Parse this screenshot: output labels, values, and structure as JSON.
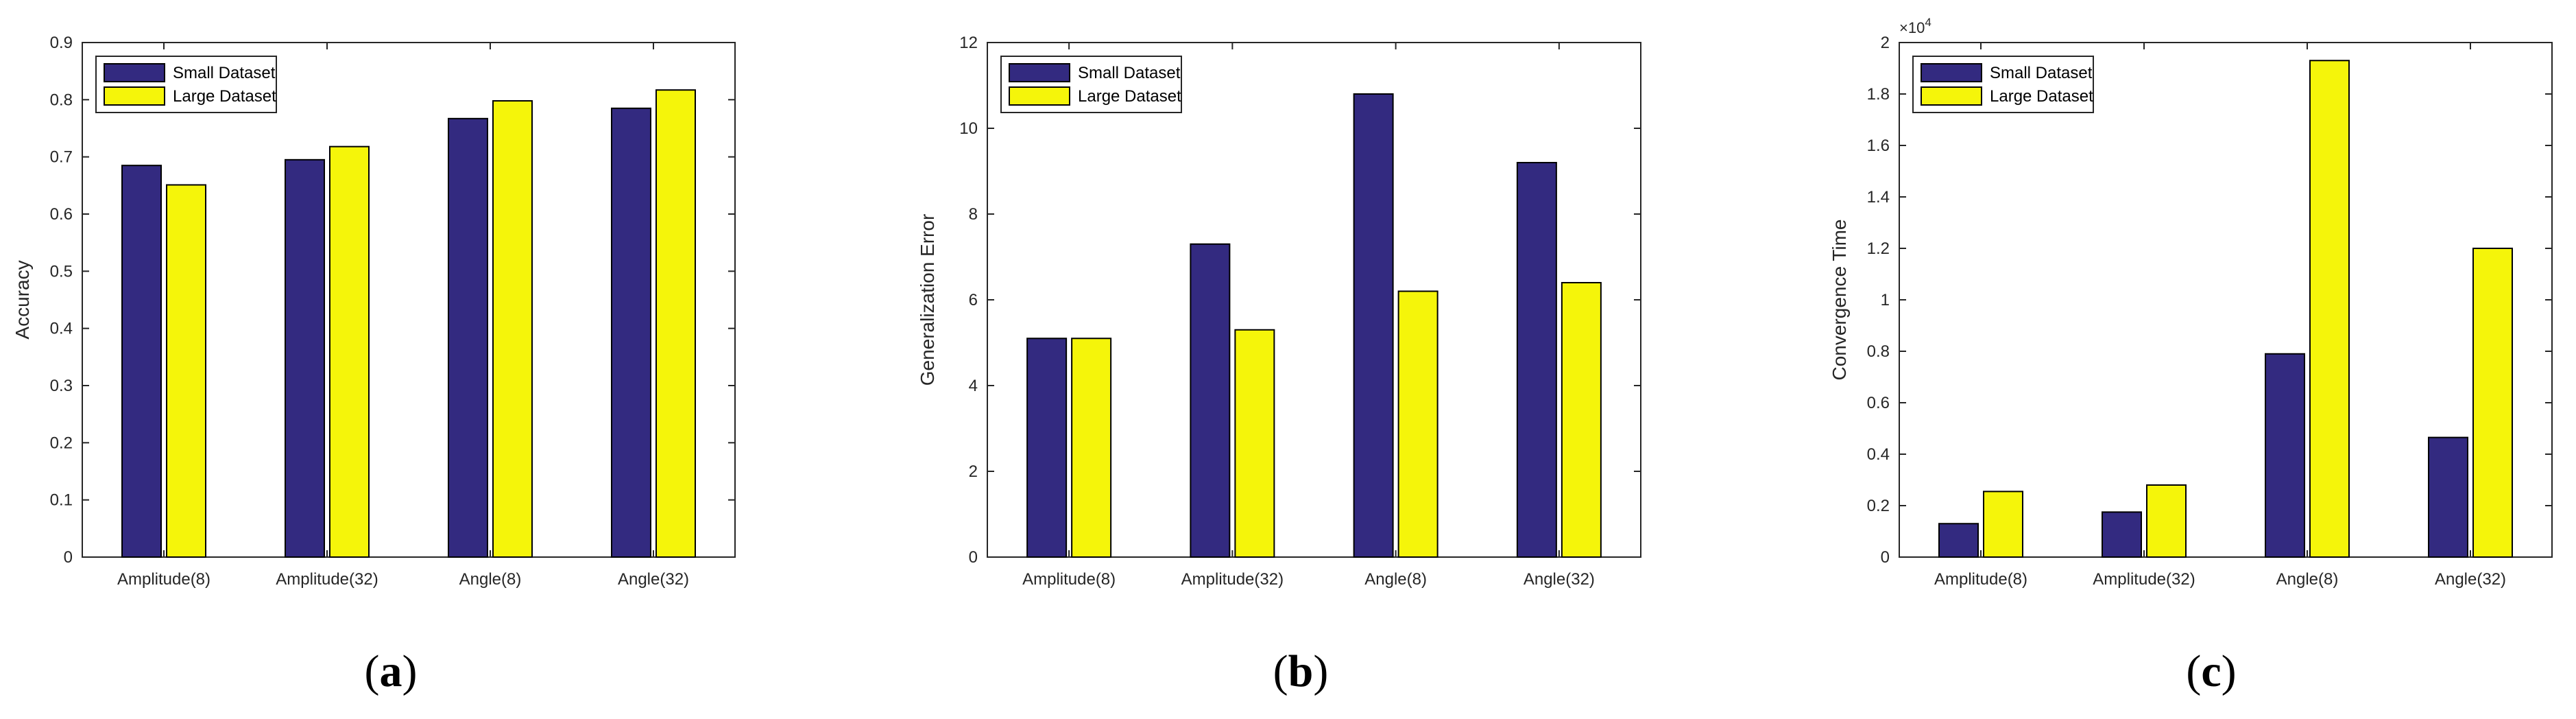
{
  "chart_data": [
    {
      "type": "bar",
      "caption_letter": "a",
      "categories": [
        "Amplitude(8)",
        "Amplitude(32)",
        "Angle(8)",
        "Angle(32)"
      ],
      "series": [
        {
          "name": "Small Dataset",
          "values": [
            0.685,
            0.695,
            0.767,
            0.785
          ]
        },
        {
          "name": "Large Dataset",
          "values": [
            0.651,
            0.718,
            0.798,
            0.817
          ]
        }
      ],
      "ylabel": "Accuracy",
      "xlabel": "",
      "ylim": [
        0,
        0.9
      ],
      "yticks": [
        0,
        0.1,
        0.2,
        0.3,
        0.4,
        0.5,
        0.6,
        0.7,
        0.8,
        0.9
      ],
      "ytick_labels": [
        "0",
        "0.1",
        "0.2",
        "0.3",
        "0.4",
        "0.5",
        "0.6",
        "0.7",
        "0.8",
        "0.9"
      ],
      "exponent_label": "",
      "legend_position": "top-left",
      "grid": false
    },
    {
      "type": "bar",
      "caption_letter": "b",
      "categories": [
        "Amplitude(8)",
        "Amplitude(32)",
        "Angle(8)",
        "Angle(32)"
      ],
      "series": [
        {
          "name": "Small Dataset",
          "values": [
            5.1,
            7.3,
            10.8,
            9.2
          ]
        },
        {
          "name": "Large Dataset",
          "values": [
            5.1,
            5.3,
            6.2,
            6.4
          ]
        }
      ],
      "ylabel": "Generalization Error",
      "xlabel": "",
      "ylim": [
        0,
        12
      ],
      "yticks": [
        0,
        2,
        4,
        6,
        8,
        10,
        12
      ],
      "ytick_labels": [
        "0",
        "2",
        "4",
        "6",
        "8",
        "10",
        "12"
      ],
      "exponent_label": "",
      "legend_position": "top-left",
      "grid": false
    },
    {
      "type": "bar",
      "caption_letter": "c",
      "categories": [
        "Amplitude(8)",
        "Amplitude(32)",
        "Angle(8)",
        "Angle(32)"
      ],
      "series": [
        {
          "name": "Small Dataset",
          "values": [
            1300,
            1750,
            7900,
            4650
          ]
        },
        {
          "name": "Large Dataset",
          "values": [
            2550,
            2800,
            19300,
            12000
          ]
        }
      ],
      "ylabel": "Convergence Time",
      "xlabel": "",
      "ylim": [
        0,
        20000
      ],
      "yticks": [
        0,
        2000,
        4000,
        6000,
        8000,
        10000,
        12000,
        14000,
        16000,
        18000,
        20000
      ],
      "ytick_labels": [
        "0",
        "0.2",
        "0.4",
        "0.6",
        "0.8",
        "1",
        "1.2",
        "1.4",
        "1.6",
        "1.8",
        "2"
      ],
      "exponent_label": "×10",
      "exponent_power": "4",
      "legend_position": "top-left",
      "grid": false
    }
  ],
  "colors": {
    "small": "#332a80",
    "large": "#f5f50a",
    "axis": "#262626",
    "edge": "#000000"
  }
}
